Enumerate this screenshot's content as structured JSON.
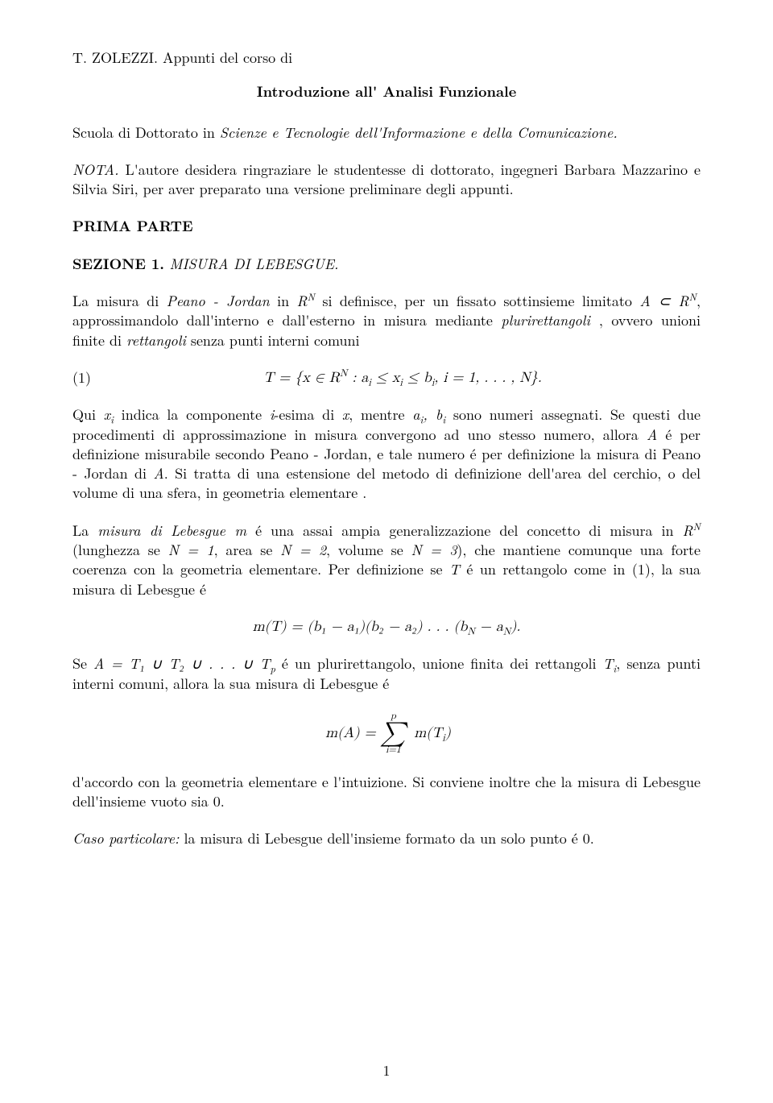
{
  "author_line_prefix": "T. ZOLEZZI. ",
  "author_line_rest": "Appunti del corso di",
  "main_title": "Introduzione all' Analisi Funzionale",
  "subtitle_prefix": "Scuola di Dottorato in ",
  "subtitle_italic": "Scienze e Tecnologie dell'Informazione e della Comunicazione.",
  "nota_label": "NOTA.",
  "nota_text": " L'autore desidera ringraziare le studentesse di dottorato, ingegneri Barbara Mazzarino e Silvia Siri, per aver preparato una versione preliminare degli appunti.",
  "prima_parte": "PRIMA PARTE",
  "section_num": "SEZIONE 1.",
  "section_name": " MISURA DI LEBESGUE.",
  "p1_a": "La misura di ",
  "p1_b": "Peano - Jordan",
  "p1_c": " in ",
  "p1_d": " si definisce, per un fissato sottinsieme limitato ",
  "p1_e": ", approssimandolo dall'interno e dall'esterno in misura mediante ",
  "p1_f": "plurirettangoli ",
  "p1_g": ", ovvero unioni finite di ",
  "p1_h": "rettangoli",
  "p1_i": " senza punti interni comuni",
  "RN": "R",
  "A_in_RN_a": "A",
  "subset_sym": " ⊂ ",
  "eq1_num": "(1)",
  "eq1_body": "T = {x ∈ R",
  "eq1_body2": " : a",
  "eq1_body3": " ≤ x",
  "eq1_body4": " ≤ b",
  "eq1_body5": ", i = 1, . . . , N}.",
  "N_expo": "N",
  "i_sub": "i",
  "p2_a": "Qui ",
  "p2_b": " indica la componente ",
  "p2_c": "i",
  "p2_d": "-esima di ",
  "p2_e": "x",
  "p2_f": ", mentre ",
  "p2_g": " sono numeri assegnati. Se questi due procedimenti di approssimazione in misura convergono ad uno stesso numero, allora ",
  "p2_h": "A",
  "p2_i": " é per definizione misurabile secondo Peano - Jordan, e tale numero é per definizione la misura di Peano - Jordan di ",
  "p2_j": ". Si tratta di una estensione del metodo di definizione dell'area del cerchio, o del volume di una sfera, in geometria elementare .",
  "xi": "x",
  "ai": "a",
  "bi": "b",
  "comma_bi": ", b",
  "p3_a": "La ",
  "p3_b": "misura di Lebesgue m",
  "p3_c": " é una assai ampia generalizzazione del concetto di misura in ",
  "p3_d": " (lunghezza se ",
  "p3_e": "N = 1",
  "p3_f": ", area se ",
  "p3_g": "N = 2",
  "p3_h": ", volume se ",
  "p3_i": "N = 3",
  "p3_j": "), che mantiene comunque una forte coerenza con la geometria elementare. Per definizione se ",
  "p3_k": "T",
  "p3_l": " é un rettangolo come in (1), la sua misura di Lebesgue é",
  "eq2": "m(T) = (b₁ − a₁)(b₂ − a₂) . . . (b",
  "eq2_b": " − a",
  "eq2_c": ").",
  "N_sub": "N",
  "p4_a": "Se ",
  "p4_b": "A = T₁ ∪ T₂ ∪ . . . ∪ T",
  "p4_c": " é un plurirettangolo, unione finita dei rettangoli ",
  "p4_d": "T",
  "p4_e": ", senza punti interni comuni, allora la sua misura di Lebesgue é",
  "p_sub": "p",
  "eq3_lhs": "m(A) = ",
  "sum_top": "p",
  "sum_sym": "∑",
  "sum_bot": "i=1",
  "eq3_rhs": " m(T",
  "eq3_rhs2": ")",
  "p5": "d'accordo con la geometria elementare e l'intuizione. Si conviene inoltre che la misura di Lebesgue dell'insieme vuoto sia 0.",
  "p6_a": "Caso particolare:",
  "p6_b": " la misura di Lebesgue dell'insieme formato da un solo punto é 0.",
  "page_number": "1"
}
